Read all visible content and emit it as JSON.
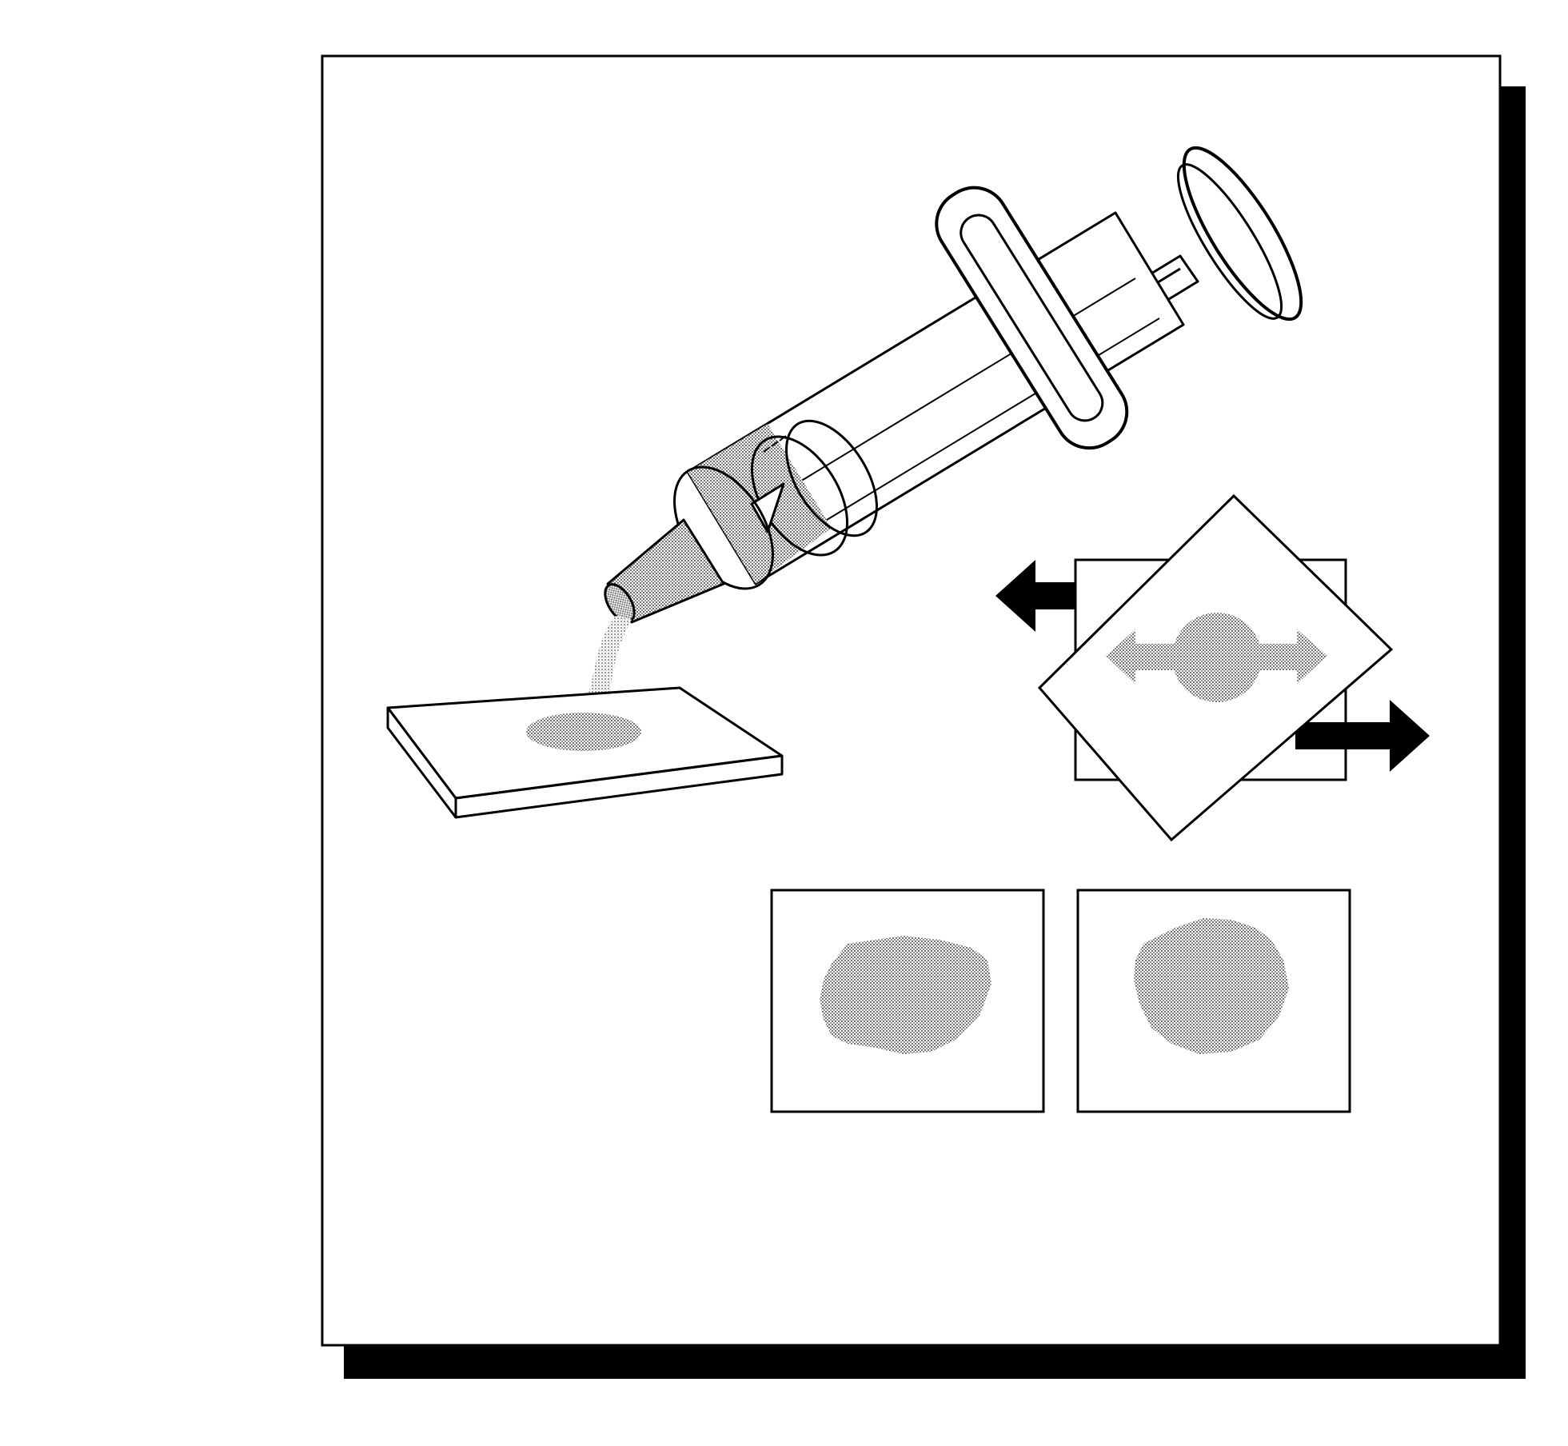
{
  "colors": {
    "background": "#ffffff",
    "ink": "#000000",
    "fluid": "#b8b8b8",
    "fluid_dark": "#9a9a9a"
  },
  "icons": [
    "syringe-icon",
    "glass-slide-icon",
    "cover-slip-icon",
    "left-arrow-icon",
    "right-arrow-icon",
    "spread-arrows-icon",
    "smear-result-icon"
  ]
}
